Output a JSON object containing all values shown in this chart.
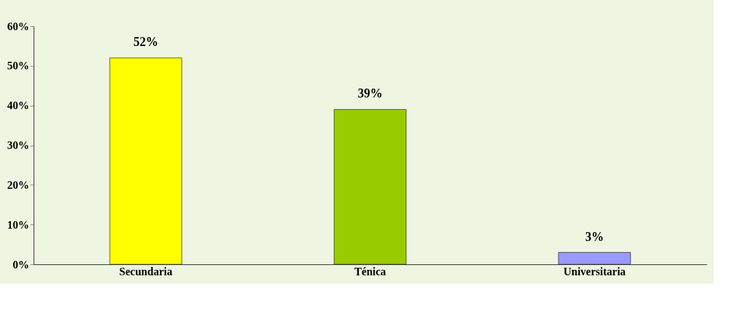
{
  "chart_data": {
    "type": "bar",
    "categories": [
      "Secundaria",
      "Ténica",
      "Universitaria"
    ],
    "values": [
      52,
      39,
      3
    ],
    "colors": [
      "#ffff00",
      "#99cc00",
      "#9999ff"
    ],
    "value_labels": [
      "52%",
      "39%",
      "3%"
    ],
    "ylim": [
      0,
      60
    ],
    "yticks": [
      {
        "value": 0,
        "label": "0%"
      },
      {
        "value": 10,
        "label": "10%"
      },
      {
        "value": 20,
        "label": "20%"
      },
      {
        "value": 30,
        "label": "30%"
      },
      {
        "value": 40,
        "label": "40%"
      },
      {
        "value": 50,
        "label": "50%"
      },
      {
        "value": 60,
        "label": "60%"
      }
    ],
    "grid": false
  }
}
